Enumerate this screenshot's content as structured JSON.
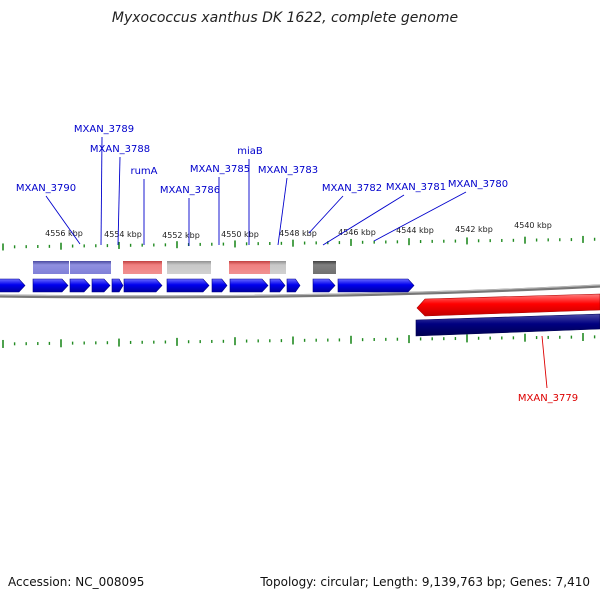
{
  "title": "Myxococcus xanthus DK 1622, complete genome",
  "footer": {
    "accession": "Accession: NC_008095",
    "summary": "Topology: circular; Length: 9,139,763 bp; Genes: 7,410"
  },
  "colors": {
    "forward_gene": "#0000ee",
    "reverse_gene_red": "#ff0000",
    "reverse_gene_navy": "#000080",
    "tick_green": "#228b22",
    "forward_label": "#0000cc",
    "reverse_label": "#dd0000",
    "backbone": "#808080"
  },
  "chart_data": {
    "type": "genome-map",
    "scale_labels": [
      "4556 kbp",
      "4554 kbp",
      "4552 kbp",
      "4550 kbp",
      "4548 kbp",
      "4546 kbp",
      "4544 kbp",
      "4542 kbp",
      "4540 kbp"
    ],
    "forward_labels": [
      "MXAN_3790",
      "MXAN_3789",
      "MXAN_3788",
      "rumA",
      "MXAN_3786",
      "MXAN_3785",
      "miaB",
      "MXAN_3783",
      "MXAN_3782",
      "MXAN_3781",
      "MXAN_3780"
    ],
    "reverse_labels": [
      "MXAN_3779"
    ]
  }
}
